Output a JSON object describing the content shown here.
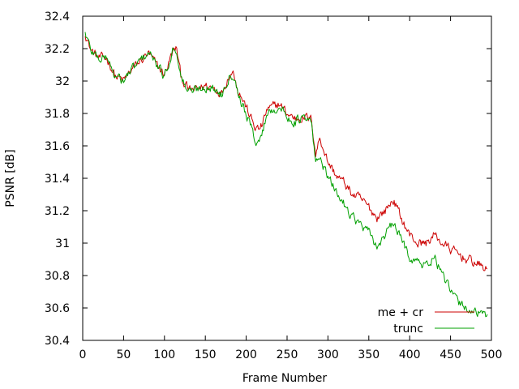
{
  "chart_data": {
    "type": "line",
    "title": "",
    "xlabel": "Frame Number",
    "ylabel": "PSNR [dB]",
    "xlim": [
      0,
      500
    ],
    "ylim": [
      30.4,
      32.4
    ],
    "xticks": [
      0,
      50,
      100,
      150,
      200,
      250,
      300,
      350,
      400,
      450,
      500
    ],
    "xtick_labels": [
      "0",
      "50",
      "100",
      "150",
      "200",
      "250",
      "300",
      "350",
      "400",
      "450",
      "500"
    ],
    "yticks": [
      30.4,
      30.6,
      30.8,
      31.0,
      31.2,
      31.4,
      31.6,
      31.8,
      32.0,
      32.2,
      32.4
    ],
    "ytick_labels": [
      "30.4",
      "30.6",
      "30.8",
      "31",
      "31.2",
      "31.4",
      "31.6",
      "31.8",
      "32",
      "32.2",
      "32.4"
    ],
    "grid": false,
    "legend_position": "bottom-right",
    "series": [
      {
        "name": "me + cr",
        "color": "#cc0000",
        "x": [
          3,
          10,
          20,
          30,
          40,
          50,
          60,
          70,
          80,
          90,
          100,
          110,
          115,
          120,
          130,
          140,
          150,
          160,
          170,
          180,
          185,
          190,
          200,
          210,
          215,
          220,
          225,
          230,
          240,
          250,
          260,
          270,
          280,
          285,
          290,
          295,
          300,
          310,
          320,
          330,
          340,
          350,
          360,
          370,
          380,
          390,
          400,
          410,
          420,
          430,
          440,
          450,
          460,
          470,
          480,
          490,
          495
        ],
        "values": [
          32.3,
          32.19,
          32.14,
          32.14,
          32.03,
          32.0,
          32.07,
          32.12,
          32.17,
          32.1,
          32.04,
          32.18,
          32.2,
          32.03,
          31.94,
          31.95,
          31.97,
          31.96,
          31.93,
          32.05,
          32.05,
          31.95,
          31.84,
          31.72,
          31.7,
          31.73,
          31.82,
          31.83,
          31.86,
          31.8,
          31.77,
          31.78,
          31.76,
          31.55,
          31.65,
          31.58,
          31.5,
          31.42,
          31.37,
          31.3,
          31.27,
          31.22,
          31.16,
          31.2,
          31.27,
          31.15,
          31.05,
          31.0,
          31.0,
          31.05,
          31.0,
          30.96,
          30.93,
          30.9,
          30.88,
          30.85,
          30.83
        ]
      },
      {
        "name": "trunc",
        "color": "#00a000",
        "x": [
          3,
          10,
          20,
          30,
          40,
          50,
          60,
          70,
          80,
          90,
          100,
          110,
          115,
          120,
          130,
          140,
          150,
          160,
          170,
          180,
          185,
          190,
          200,
          210,
          215,
          220,
          225,
          230,
          240,
          250,
          260,
          270,
          280,
          285,
          290,
          295,
          300,
          310,
          320,
          330,
          340,
          350,
          360,
          370,
          380,
          390,
          400,
          410,
          420,
          430,
          440,
          450,
          460,
          470,
          480,
          490,
          495
        ],
        "values": [
          32.3,
          32.19,
          32.14,
          32.15,
          32.02,
          32.0,
          32.07,
          32.12,
          32.18,
          32.1,
          32.03,
          32.19,
          32.2,
          32.02,
          31.93,
          31.95,
          31.97,
          31.95,
          31.92,
          32.05,
          32.04,
          31.93,
          31.8,
          31.65,
          31.62,
          31.68,
          31.8,
          31.82,
          31.84,
          31.78,
          31.75,
          31.77,
          31.74,
          31.48,
          31.55,
          31.47,
          31.4,
          31.32,
          31.24,
          31.17,
          31.11,
          31.06,
          30.98,
          31.05,
          31.12,
          31.02,
          30.92,
          30.88,
          30.86,
          30.92,
          30.8,
          30.7,
          30.63,
          30.6,
          30.58,
          30.55,
          30.55
        ]
      }
    ]
  }
}
